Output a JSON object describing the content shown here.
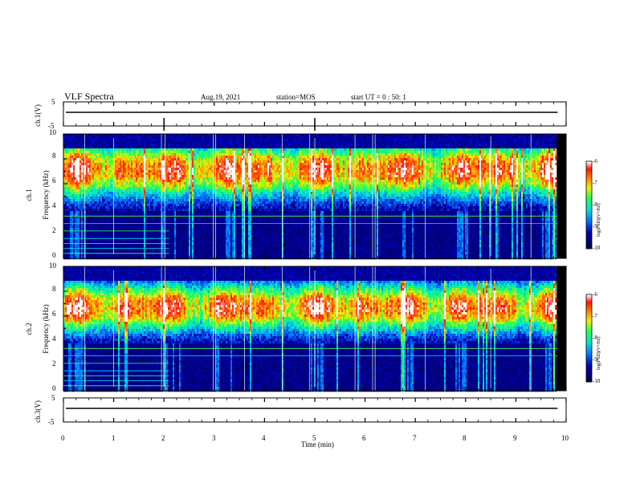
{
  "header": {
    "title": "VLF Spectra",
    "date": "Aug.19, 2021",
    "station": "station=MOS",
    "start_ut": "start  UT =   0 : 50: 1"
  },
  "chart_data": {
    "type": "heatmap",
    "x": {
      "label": "Time  (min)",
      "range": [
        0,
        10
      ],
      "ticks": [
        "0",
        "1",
        "2",
        "3",
        "4",
        "5",
        "6",
        "7",
        "8",
        "9",
        "10"
      ]
    },
    "panels": [
      {
        "id": "ch1-waveform",
        "type": "line",
        "ylabel": "ch.1(V)",
        "ylim": [
          -5,
          5
        ],
        "ticks": [
          "5",
          "-5"
        ],
        "level": 0
      },
      {
        "id": "ch1-spectrogram",
        "type": "heatmap",
        "ylabel_top": "ch.1",
        "ylabel": "Frequency  (kHz)",
        "ylim": [
          0,
          10
        ],
        "ticks": [
          "0",
          "2",
          "4",
          "6",
          "8",
          "10"
        ],
        "colorbar": {
          "label": "log(PSD)(V²/Hz)",
          "range": [
            -10,
            -6
          ],
          "ticks": [
            "-6",
            "-7",
            "-8",
            "-9",
            "-10"
          ]
        }
      },
      {
        "id": "ch2-spectrogram",
        "type": "heatmap",
        "ylabel_top": "ch.2",
        "ylabel": "Frequency  (kHz)",
        "ylim": [
          0,
          10
        ],
        "ticks": [
          "0",
          "2",
          "4",
          "6",
          "8",
          "10"
        ],
        "colorbar": {
          "label": "log(PSD)(V²/Hz)",
          "range": [
            -10,
            -6
          ],
          "ticks": [
            "-6",
            "-7",
            "-8",
            "-9",
            "-10"
          ]
        }
      },
      {
        "id": "ch3-waveform",
        "type": "line",
        "ylabel": "ch.3(V)",
        "ylim": [
          -5,
          5
        ],
        "ticks": [
          "5",
          "-5"
        ],
        "level": 0
      }
    ],
    "grid": false,
    "data_end_min": 9.83,
    "colors": {
      "low": "#000070",
      "mid": "#00ff60",
      "high": "#ff2000",
      "max": "#ffffff"
    }
  }
}
